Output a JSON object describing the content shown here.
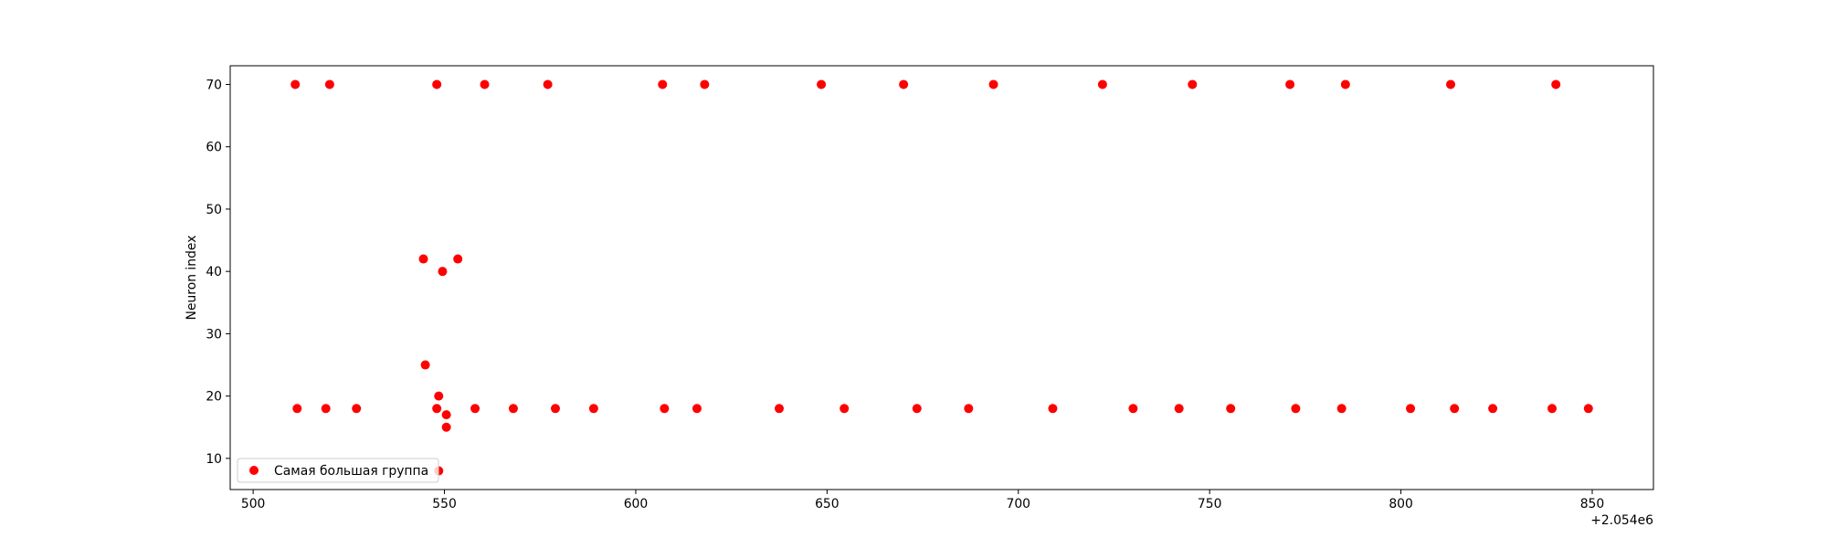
{
  "chart_data": {
    "type": "scatter",
    "title": "",
    "xlabel": "",
    "ylabel": "Neuron index",
    "x_offset_label": "+2.054e6",
    "xlim": [
      494,
      866
    ],
    "ylim": [
      5,
      73
    ],
    "xticks": [
      500,
      550,
      600,
      650,
      700,
      750,
      800,
      850
    ],
    "yticks": [
      10,
      20,
      30,
      40,
      50,
      60,
      70
    ],
    "grid": false,
    "legend_position": "lower left",
    "series": [
      {
        "name": "Самая большая группа",
        "color": "#ff0000",
        "marker": "circle",
        "points": [
          [
            511,
            70
          ],
          [
            520,
            70
          ],
          [
            548,
            70
          ],
          [
            560.5,
            70
          ],
          [
            577,
            70
          ],
          [
            607,
            70
          ],
          [
            618,
            70
          ],
          [
            648.5,
            70
          ],
          [
            670,
            70
          ],
          [
            693.5,
            70
          ],
          [
            722,
            70
          ],
          [
            745.5,
            70
          ],
          [
            771,
            70
          ],
          [
            785.5,
            70
          ],
          [
            813,
            70
          ],
          [
            840.5,
            70
          ],
          [
            544.5,
            42
          ],
          [
            553.5,
            42
          ],
          [
            549.5,
            40
          ],
          [
            545,
            25
          ],
          [
            548.5,
            20
          ],
          [
            550.5,
            17
          ],
          [
            550.5,
            15
          ],
          [
            548.5,
            8
          ],
          [
            511.5,
            18
          ],
          [
            519,
            18
          ],
          [
            527,
            18
          ],
          [
            548,
            18
          ],
          [
            558,
            18
          ],
          [
            568,
            18
          ],
          [
            579,
            18
          ],
          [
            589,
            18
          ],
          [
            607.5,
            18
          ],
          [
            616,
            18
          ],
          [
            637.5,
            18
          ],
          [
            654.5,
            18
          ],
          [
            673.5,
            18
          ],
          [
            687,
            18
          ],
          [
            709,
            18
          ],
          [
            730,
            18
          ],
          [
            742,
            18
          ],
          [
            755.5,
            18
          ],
          [
            772.5,
            18
          ],
          [
            784.5,
            18
          ],
          [
            802.5,
            18
          ],
          [
            814,
            18
          ],
          [
            824,
            18
          ],
          [
            839.5,
            18
          ],
          [
            849,
            18
          ]
        ]
      }
    ]
  }
}
